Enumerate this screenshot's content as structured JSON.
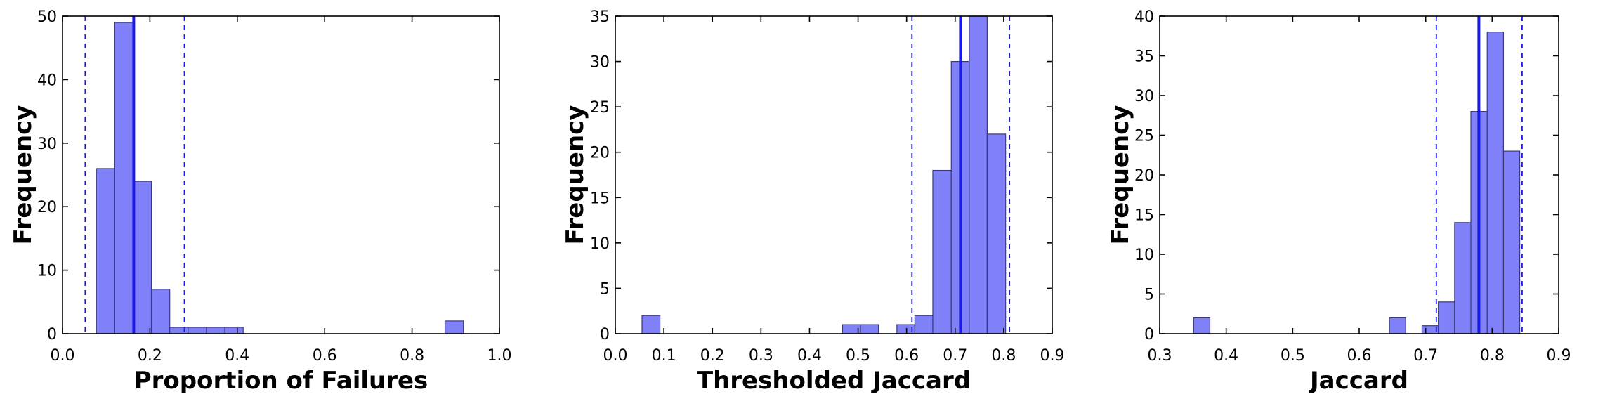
{
  "chart_data": [
    {
      "type": "histogram",
      "xlabel": "Proportion of Failures",
      "ylabel": "Frequency",
      "xlim": [
        0.0,
        1.0
      ],
      "ylim": [
        0,
        50
      ],
      "xticks": [
        0.0,
        0.2,
        0.4,
        0.6,
        0.8,
        1.0
      ],
      "xtick_labels": [
        "0.0",
        "0.2",
        "0.4",
        "0.6",
        "0.8",
        "1.0"
      ],
      "yticks": [
        0,
        10,
        20,
        30,
        40,
        50
      ],
      "ytick_labels": [
        "0",
        "10",
        "20",
        "30",
        "40",
        "50"
      ],
      "bins": [
        {
          "x0": 0.0775,
          "x1": 0.1195,
          "count": 26
        },
        {
          "x0": 0.1195,
          "x1": 0.1615,
          "count": 49
        },
        {
          "x0": 0.1615,
          "x1": 0.2035,
          "count": 24
        },
        {
          "x0": 0.2035,
          "x1": 0.2455,
          "count": 7
        },
        {
          "x0": 0.2455,
          "x1": 0.2875,
          "count": 1
        },
        {
          "x0": 0.2875,
          "x1": 0.3295,
          "count": 1
        },
        {
          "x0": 0.3295,
          "x1": 0.3715,
          "count": 1
        },
        {
          "x0": 0.3715,
          "x1": 0.4135,
          "count": 1
        },
        {
          "x0": 0.8755,
          "x1": 0.9175,
          "count": 2
        }
      ],
      "mean_line": 0.163,
      "interval_lines": [
        0.052,
        0.279
      ],
      "bar_color": "#8080f8",
      "line_color": "#1a1ae6",
      "grid": false
    },
    {
      "type": "histogram",
      "xlabel": "Thresholded Jaccard",
      "ylabel": "Frequency",
      "xlim": [
        0.0,
        0.9
      ],
      "ylim": [
        0,
        35
      ],
      "xticks": [
        0.0,
        0.1,
        0.2,
        0.3,
        0.4,
        0.5,
        0.6,
        0.7,
        0.8,
        0.9
      ],
      "xtick_labels": [
        "0.0",
        "0.1",
        "0.2",
        "0.3",
        "0.4",
        "0.5",
        "0.6",
        "0.7",
        "0.8",
        "0.9"
      ],
      "yticks": [
        0,
        5,
        10,
        15,
        20,
        25,
        30,
        35
      ],
      "ytick_labels": [
        "0",
        "5",
        "10",
        "15",
        "20",
        "25",
        "30",
        "35"
      ],
      "bins": [
        {
          "x0": 0.055,
          "x1": 0.092,
          "count": 2
        },
        {
          "x0": 0.468,
          "x1": 0.505,
          "count": 1
        },
        {
          "x0": 0.505,
          "x1": 0.542,
          "count": 1
        },
        {
          "x0": 0.58,
          "x1": 0.617,
          "count": 1
        },
        {
          "x0": 0.617,
          "x1": 0.654,
          "count": 2
        },
        {
          "x0": 0.654,
          "x1": 0.692,
          "count": 18
        },
        {
          "x0": 0.692,
          "x1": 0.729,
          "count": 30
        },
        {
          "x0": 0.729,
          "x1": 0.766,
          "count": 35
        },
        {
          "x0": 0.766,
          "x1": 0.804,
          "count": 22
        }
      ],
      "mean_line": 0.711,
      "interval_lines": [
        0.611,
        0.812
      ],
      "bar_color": "#8080f8",
      "line_color": "#1a1ae6",
      "grid": false
    },
    {
      "type": "histogram",
      "xlabel": "Jaccard",
      "ylabel": "Frequency",
      "xlim": [
        0.3,
        0.9
      ],
      "ylim": [
        0,
        40
      ],
      "xticks": [
        0.3,
        0.4,
        0.5,
        0.6,
        0.7,
        0.8,
        0.9
      ],
      "xtick_labels": [
        "0.3",
        "0.4",
        "0.5",
        "0.6",
        "0.7",
        "0.8",
        "0.9"
      ],
      "yticks": [
        0,
        5,
        10,
        15,
        20,
        25,
        30,
        35,
        40
      ],
      "ytick_labels": [
        "0",
        "5",
        "10",
        "15",
        "20",
        "25",
        "30",
        "35",
        "40"
      ],
      "bins": [
        {
          "x0": 0.351,
          "x1": 0.3755,
          "count": 2
        },
        {
          "x0": 0.6455,
          "x1": 0.67,
          "count": 2
        },
        {
          "x0": 0.6945,
          "x1": 0.719,
          "count": 1
        },
        {
          "x0": 0.719,
          "x1": 0.7435,
          "count": 4
        },
        {
          "x0": 0.7435,
          "x1": 0.768,
          "count": 14
        },
        {
          "x0": 0.768,
          "x1": 0.7925,
          "count": 28
        },
        {
          "x0": 0.7925,
          "x1": 0.817,
          "count": 38
        },
        {
          "x0": 0.817,
          "x1": 0.8415,
          "count": 23
        }
      ],
      "mean_line": 0.78,
      "interval_lines": [
        0.716,
        0.845
      ],
      "bar_color": "#8080f8",
      "line_color": "#1a1ae6",
      "grid": false
    }
  ]
}
